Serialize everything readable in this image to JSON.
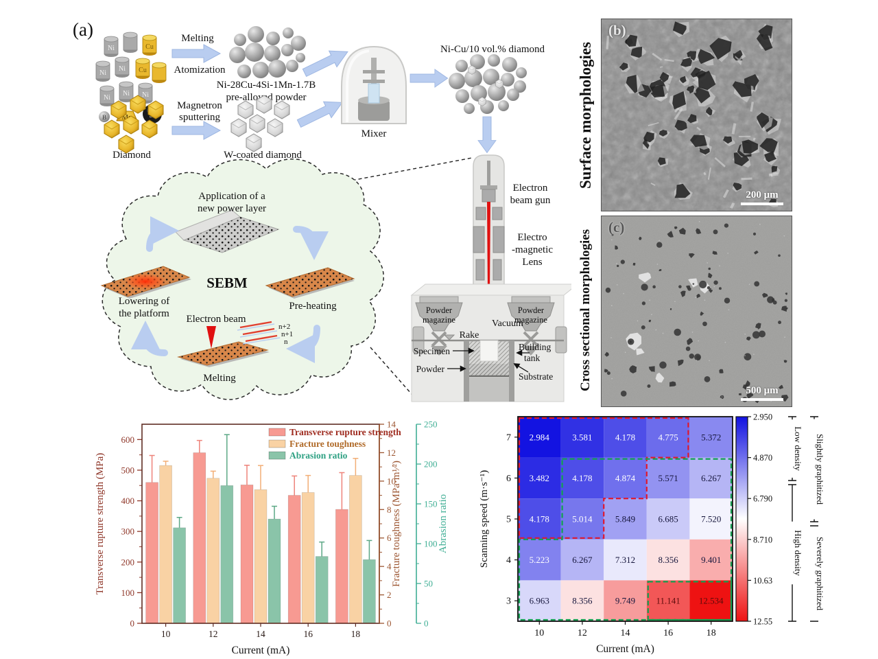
{
  "panel_a": {
    "tag": "(a)",
    "elements": {
      "ni": "Ni",
      "cu": "Cu",
      "b": "B",
      "mn": "Mn",
      "si": "Si"
    },
    "melting": "Melting",
    "atomization": "Atomization",
    "powder_line1": "Ni-28Cu-4Si-1Mn-1.7B",
    "powder_line2": "pre-alloyed powder",
    "diamond": "Diamond",
    "magnetron_line1": "Magnetron",
    "magnetron_line2": "sputtering",
    "wcoated": "W-coated diamond",
    "mixer": "Mixer",
    "mixture": "Ni-Cu/10 vol.% diamond",
    "ebg_line1": "Electron",
    "ebg_line2": "beam gun",
    "eml_line1": "Electro",
    "eml_line2": "-magnetic",
    "eml_line3": "Lens",
    "pm_line1": "Powder",
    "pm_line2": "magazine",
    "vacuum": "Vacuum",
    "rake": "Rake",
    "specimen": "Specimen",
    "bt_line1": "Building",
    "bt_line2": "tank",
    "powder": "Powder",
    "substrate": "Substrate",
    "cloud": {
      "app_line1": "Application of a",
      "app_line2": "new power layer",
      "sebm": "SEBM",
      "preheating": "Pre-heating",
      "melting": "Melting",
      "lowering_line1": "Lowering of",
      "lowering_line2": "the platform",
      "ebeam": "Electron beam",
      "layers": [
        "n+2",
        "n+1",
        "n"
      ]
    }
  },
  "panel_b": {
    "tag": "(b)",
    "side_label": "Surface morphologies",
    "scalebar": "200 μm"
  },
  "panel_c": {
    "tag": "(c)",
    "side_label": "Cross sectional morphologies",
    "scalebar": "500 μm"
  },
  "chart_data": [
    {
      "type": "bar",
      "categories": [
        "10",
        "12",
        "14",
        "16",
        "18"
      ],
      "xlabel": "Current (mA)",
      "axes": {
        "left": {
          "label": "Transverse rupture strength (MPa)",
          "min": 0,
          "max": 650,
          "ticks": [
            0,
            100,
            200,
            300,
            400,
            500,
            600
          ],
          "minor_step": 50,
          "color": "#8e3527"
        },
        "right1": {
          "label": "Fracture toughness (MPa·m¹⁄²)",
          "min": 0,
          "max": 14,
          "ticks": [
            0,
            2,
            4,
            6,
            8,
            10,
            12,
            14
          ],
          "minor_step": 1,
          "color": "#9c5530"
        },
        "right2": {
          "label": "Abrasion ratio",
          "min": 0,
          "max": 250,
          "ticks": [
            0,
            50,
            100,
            150,
            200,
            250
          ],
          "minor_step": 25,
          "color": "#3fae94"
        }
      },
      "series": [
        {
          "name": "Transverse rupture strength",
          "axis": "left",
          "color": "#f79a92",
          "err_color": "#ee837a",
          "label_color": "#9e2b1f",
          "values": [
            460,
            557,
            452,
            418,
            372
          ],
          "errors": [
            88,
            40,
            64,
            63,
            120
          ]
        },
        {
          "name": "Fracture toughness",
          "axis": "right1",
          "color": "#f9d2a4",
          "err_color": "#f2ae76",
          "label_color": "#b06a28",
          "values": [
            11.1,
            10.2,
            9.4,
            9.2,
            10.4
          ],
          "errors": [
            0.3,
            0.5,
            1.7,
            1.2,
            1.2
          ]
        },
        {
          "name": "Abrasion ratio",
          "axis": "right2",
          "color": "#8ac4a9",
          "err_color": "#5ca886",
          "label_color": "#2fa183",
          "values": [
            120,
            173,
            131,
            84,
            80
          ],
          "errors": [
            13,
            64,
            16,
            18,
            24
          ]
        }
      ],
      "legend_pos": "top-right",
      "grid": false
    },
    {
      "type": "heatmap",
      "xlabel": "Current (mA)",
      "ylabel": "Scanning speed (m·s⁻¹)",
      "x": [
        "10",
        "12",
        "14",
        "16",
        "18"
      ],
      "y": [
        "7",
        "6",
        "5",
        "4",
        "3"
      ],
      "values": [
        [
          2.984,
          3.581,
          4.178,
          4.775,
          5.372
        ],
        [
          3.482,
          4.178,
          4.874,
          5.571,
          6.267
        ],
        [
          4.178,
          5.014,
          5.849,
          6.685,
          7.52
        ],
        [
          5.223,
          6.267,
          7.312,
          8.356,
          9.401
        ],
        [
          6.963,
          8.356,
          9.749,
          11.141,
          12.534
        ]
      ],
      "colorbar": {
        "min": 2.95,
        "max": 12.55,
        "ticks": [
          "2.950",
          "4.870",
          "6.790",
          "8.710",
          "10.63",
          "12.55"
        ]
      },
      "annotations": {
        "low_density": "Low density",
        "high_density": "High density",
        "slightly": "Slightly graphitized",
        "severely": "Severely graphitized"
      },
      "region_colors": {
        "red_dash": "#e0192e",
        "green_dash": "#12a050"
      }
    }
  ]
}
